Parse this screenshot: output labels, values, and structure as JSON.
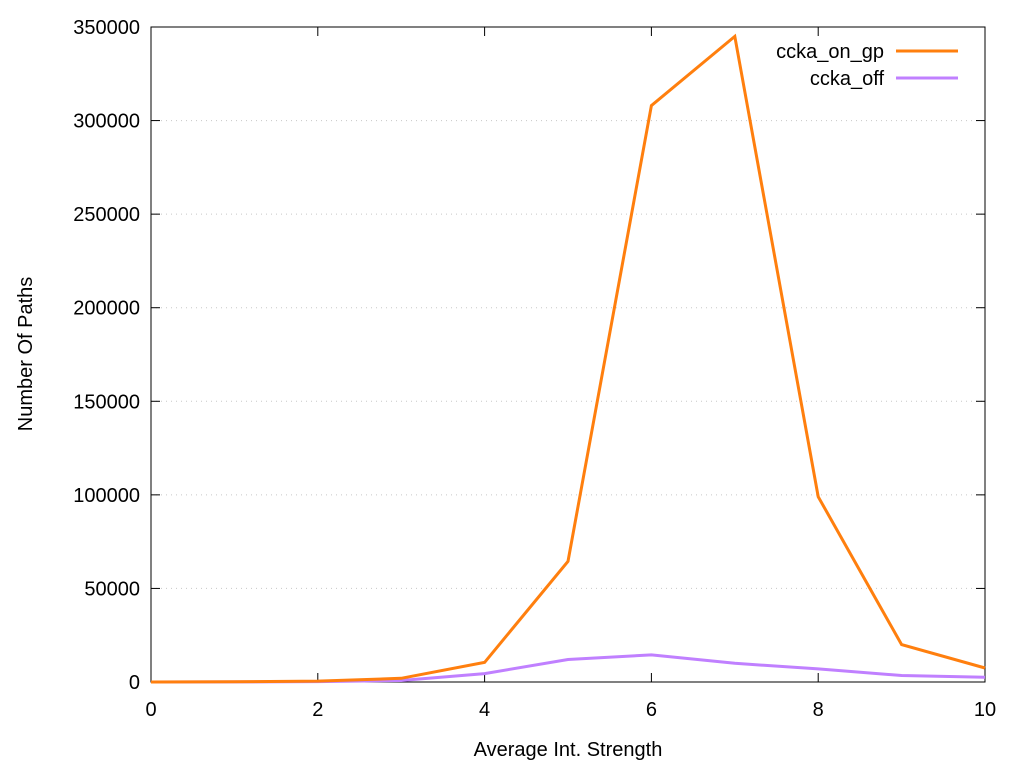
{
  "chart_data": {
    "type": "line",
    "title": "",
    "xlabel": "Average Int. Strength",
    "ylabel": "Number Of Paths",
    "xlim": [
      0,
      10
    ],
    "ylim": [
      0,
      350000
    ],
    "x_ticks": [
      0,
      2,
      4,
      6,
      8,
      10
    ],
    "y_ticks": [
      0,
      50000,
      100000,
      150000,
      200000,
      250000,
      300000,
      350000
    ],
    "grid": "horizontal dotted",
    "legend_position": "top-right",
    "x": [
      0,
      1,
      2,
      3,
      4,
      5,
      6,
      7,
      8,
      9,
      10
    ],
    "series": [
      {
        "name": "ccka_on_gp",
        "color": "#ff7f0e",
        "values": [
          0,
          100,
          500,
          2000,
          10500,
          64500,
          308000,
          345000,
          99000,
          20000,
          7500
        ]
      },
      {
        "name": "ccka_off",
        "color": "#c080ff",
        "values": [
          0,
          50,
          200,
          800,
          4500,
          12000,
          14500,
          10000,
          7000,
          3500,
          2500
        ]
      }
    ]
  }
}
